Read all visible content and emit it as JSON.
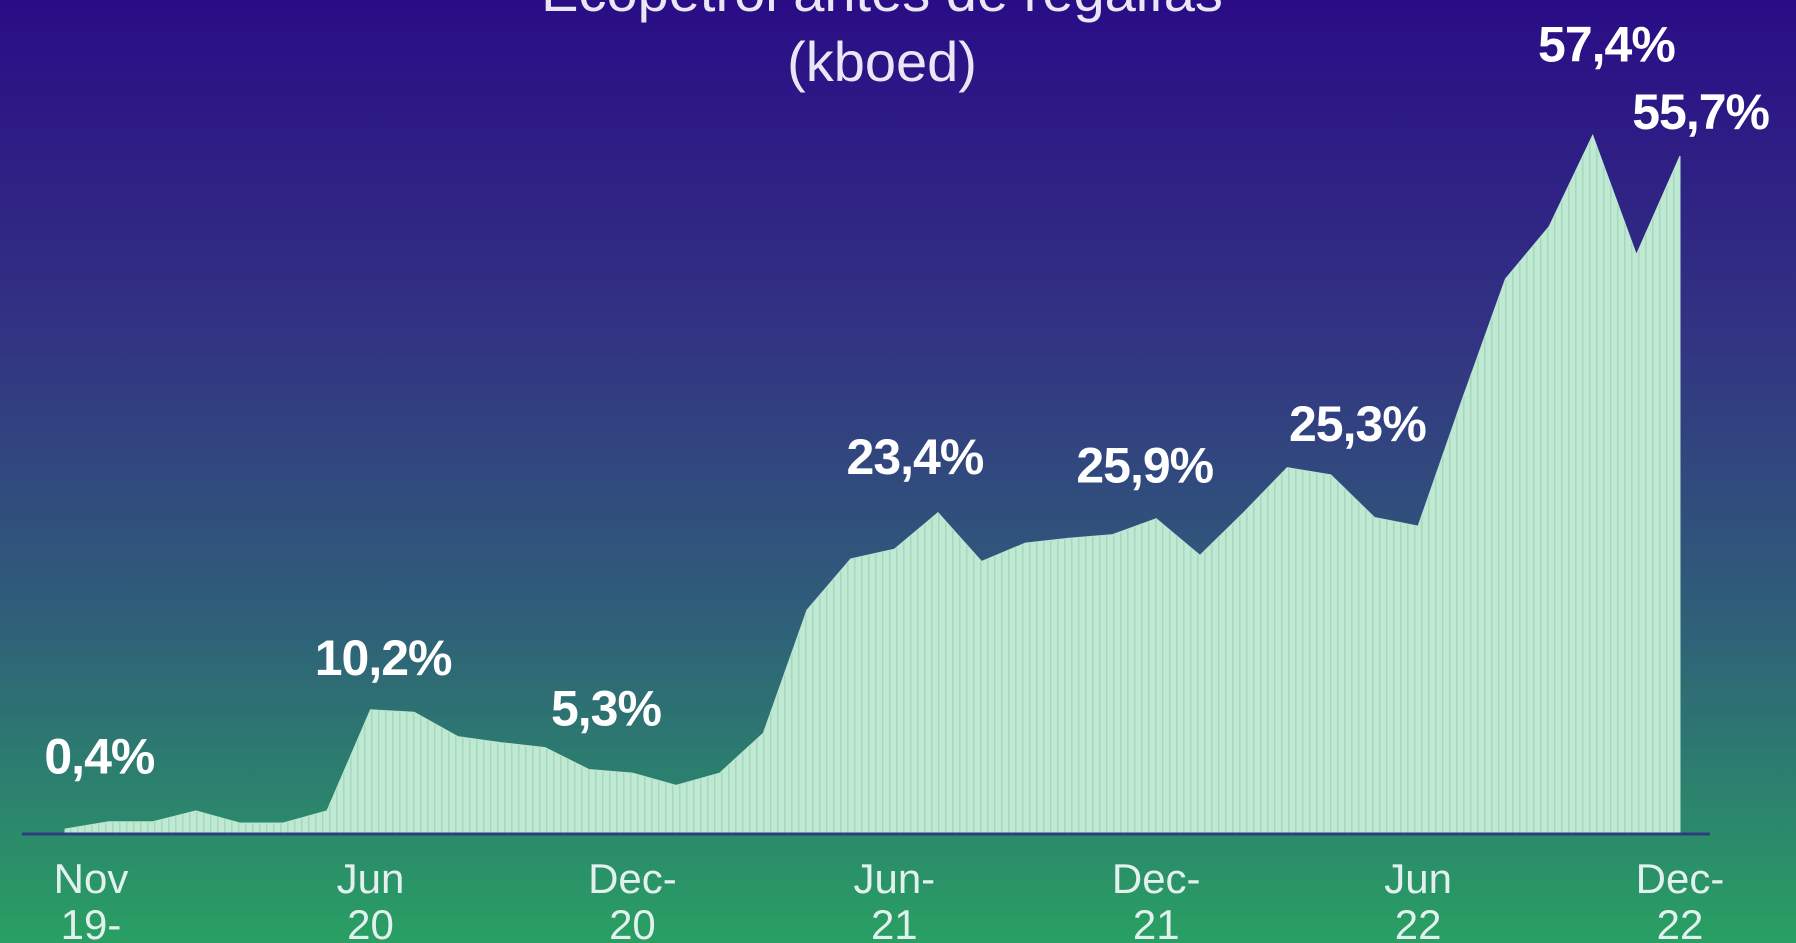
{
  "chart_data": {
    "type": "area",
    "title": "Ecopetrol antes de regalías",
    "subtitle": "(kboed)",
    "categories": [
      "Nov\n19-",
      null,
      null,
      null,
      null,
      null,
      null,
      "Jun\n20",
      null,
      null,
      null,
      null,
      null,
      "Dec-\n20",
      null,
      null,
      null,
      null,
      null,
      "Jun-\n21",
      null,
      null,
      null,
      null,
      null,
      "Dec-\n21",
      null,
      null,
      null,
      null,
      null,
      "Jun\n22",
      null,
      null,
      null,
      null,
      null,
      "Dec-\n22"
    ],
    "values": [
      0.4,
      1.0,
      1.0,
      1.9,
      0.9,
      0.9,
      1.9,
      10.2,
      10.0,
      8.0,
      7.5,
      7.1,
      5.3,
      5.0,
      4.0,
      5.0,
      8.3,
      18.4,
      22.6,
      23.4,
      26.4,
      22.4,
      23.9,
      24.3,
      24.6,
      25.9,
      22.9,
      26.4,
      30.1,
      29.5,
      26.0,
      25.3,
      35.6,
      45.6,
      49.9,
      57.4,
      47.6,
      55.7
    ],
    "value_labels": [
      "0,4%",
      null,
      null,
      null,
      null,
      null,
      null,
      "10,2%",
      null,
      null,
      null,
      null,
      "5,3%",
      null,
      null,
      null,
      null,
      null,
      null,
      "23,4%",
      null,
      null,
      null,
      null,
      null,
      "25,9%",
      null,
      null,
      null,
      null,
      null,
      "25,3%",
      null,
      null,
      null,
      "57,4%",
      null,
      "55,7%"
    ],
    "color": "#b9e6cf",
    "ylim": [
      0,
      64
    ]
  }
}
